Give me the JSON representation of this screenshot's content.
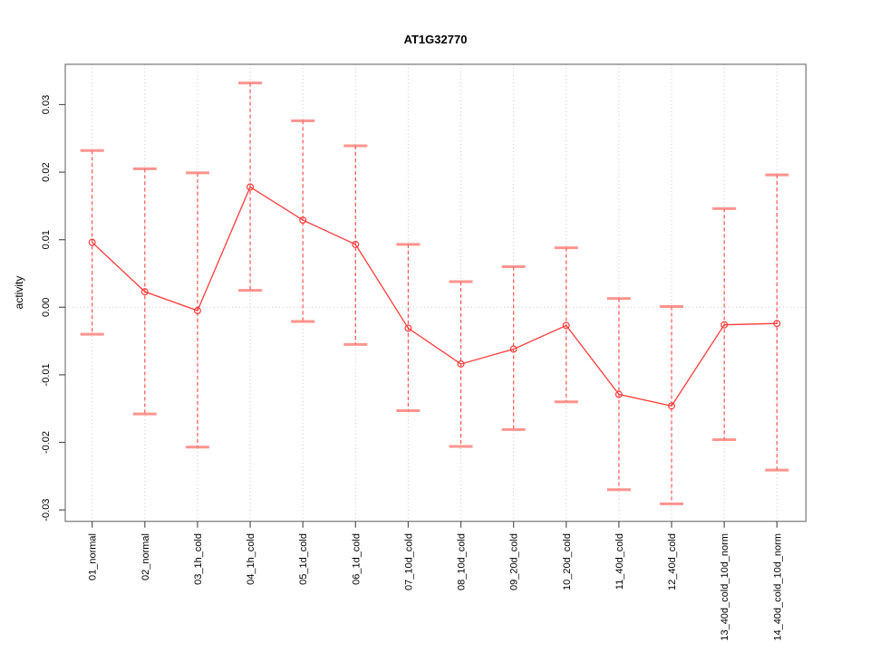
{
  "chart_data": {
    "type": "line",
    "title": "AT1G32770",
    "xlabel": "",
    "ylabel": "activity",
    "categories": [
      "01_normal",
      "02_normal",
      "03_1h_cold",
      "04_1h_cold",
      "05_1d_cold",
      "06_1d_cold",
      "07_10d_cold",
      "08_10d_cold",
      "09_20d_cold",
      "10_20d_cold",
      "11_40d_cold",
      "12_40d_cold",
      "13_40d_cold_10d_norm",
      "14_40d_cold_10d_norm"
    ],
    "series": [
      {
        "name": "activity",
        "values": [
          0.0096,
          0.0023,
          -0.0005,
          0.0178,
          0.0129,
          0.0093,
          -0.0031,
          -0.0084,
          -0.0062,
          -0.0027,
          -0.0129,
          -0.0146,
          -0.0026,
          -0.0024
        ],
        "upper": [
          0.0232,
          0.0205,
          0.0199,
          0.0332,
          0.0276,
          0.0239,
          0.0093,
          0.0038,
          0.006,
          0.0088,
          0.0013,
          0.0001,
          0.0146,
          0.0196
        ],
        "lower": [
          -0.004,
          -0.0158,
          -0.0207,
          0.0025,
          -0.0021,
          -0.0055,
          -0.0153,
          -0.0206,
          -0.0181,
          -0.014,
          -0.027,
          -0.0291,
          -0.0196,
          -0.0241
        ]
      }
    ],
    "yticks": [
      -0.03,
      -0.02,
      -0.01,
      0,
      0.01,
      0.02,
      0.03
    ],
    "ytick_labels": [
      "-0.03",
      "-0.02",
      "-0.01",
      "0.00",
      "0.01",
      "0.02",
      "0.03"
    ],
    "ylim": [
      -0.0317,
      0.036
    ],
    "grid": {
      "vertical_gridlines": true,
      "horizontal_zero_line": true,
      "legend": "none"
    },
    "colors": {
      "series_line": "#ff3b3b",
      "marker": "#ff3b3b",
      "error_bar": "#ff4242",
      "error_cap": "#ff7a72",
      "gridline": "#c9c9c9",
      "axis_box": "#777777",
      "tick": "#555555",
      "text": "#000000",
      "background": "#ffffff"
    }
  }
}
